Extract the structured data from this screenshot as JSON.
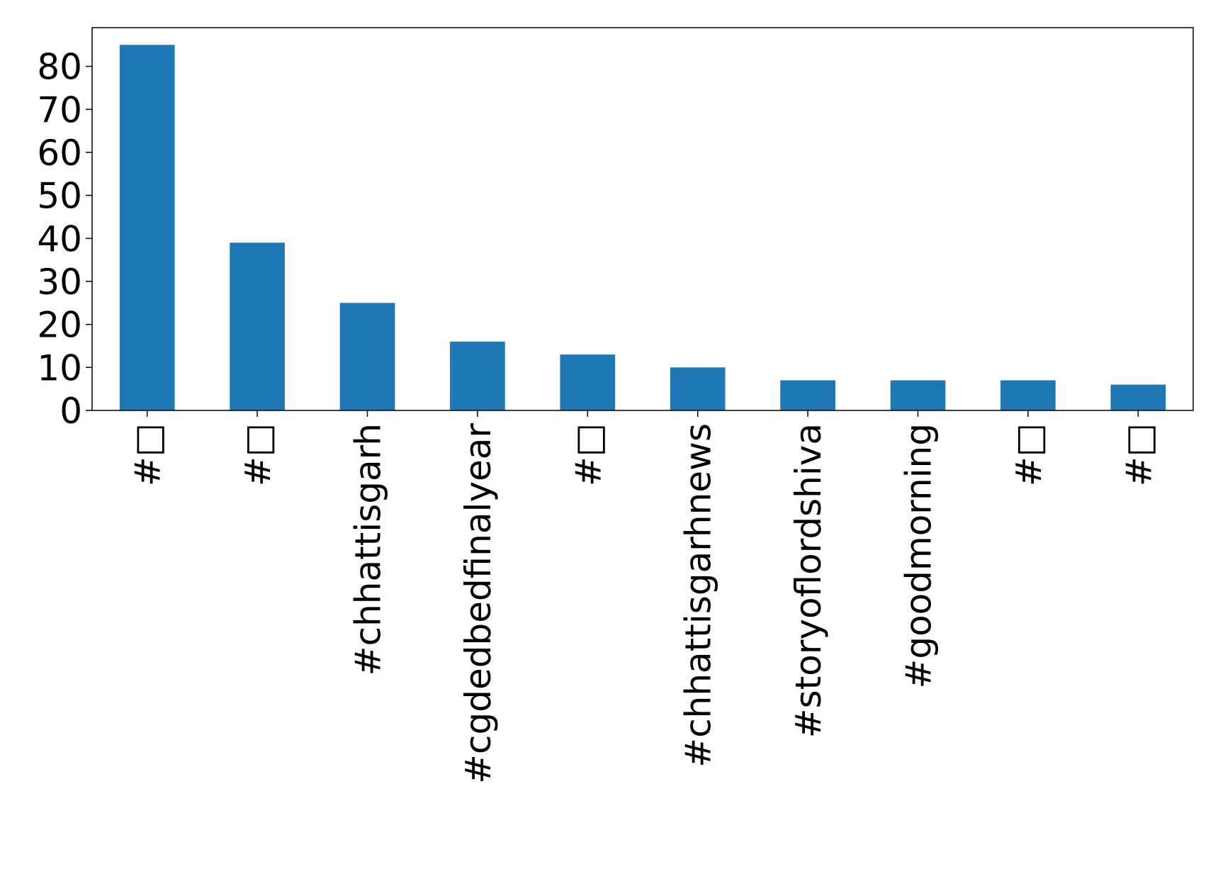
{
  "chart_data": {
    "type": "bar",
    "title": "",
    "xlabel": "",
    "ylabel": "",
    "categories": [
      "#□",
      "#□",
      "#chhattisgarh",
      "#cgdedbedfinalyear",
      "#□",
      "#chhattisgarhnews",
      "#storyoflordshiva",
      "#goodmorning",
      "#□",
      "#□"
    ],
    "values": [
      85,
      39,
      25,
      16,
      13,
      10,
      7,
      7,
      7,
      6
    ],
    "ylim": [
      0,
      89
    ],
    "yticks": [
      0,
      10,
      20,
      30,
      40,
      50,
      60,
      70,
      80
    ],
    "ytick_labels": [
      "0",
      "10",
      "20",
      "30",
      "40",
      "50",
      "60",
      "70",
      "80"
    ],
    "grid": false,
    "legend": "none",
    "bar_color": "#1f77b4"
  }
}
